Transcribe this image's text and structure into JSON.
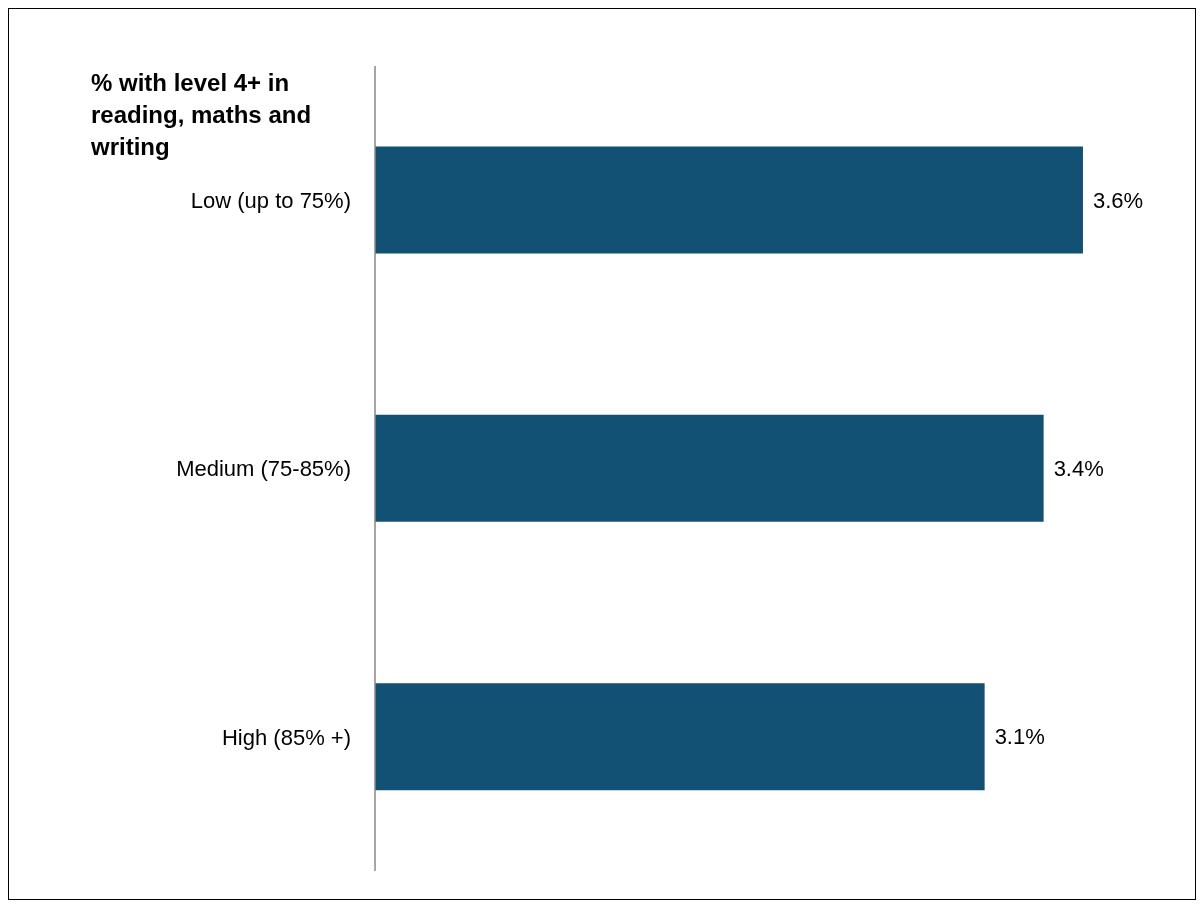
{
  "chart_data": {
    "type": "bar",
    "orientation": "horizontal",
    "ylabel": "% with level 4+ in reading, maths and writing",
    "categories": [
      "Low (up to 75%)",
      "Medium (75-85%)",
      "High (85% +)"
    ],
    "values": [
      3.6,
      3.4,
      3.1
    ],
    "color": "#125074",
    "data_labels": true,
    "value_labels": [
      "3.6%",
      "3.4%",
      "3.1%"
    ],
    "grid": false,
    "legend": false
  }
}
